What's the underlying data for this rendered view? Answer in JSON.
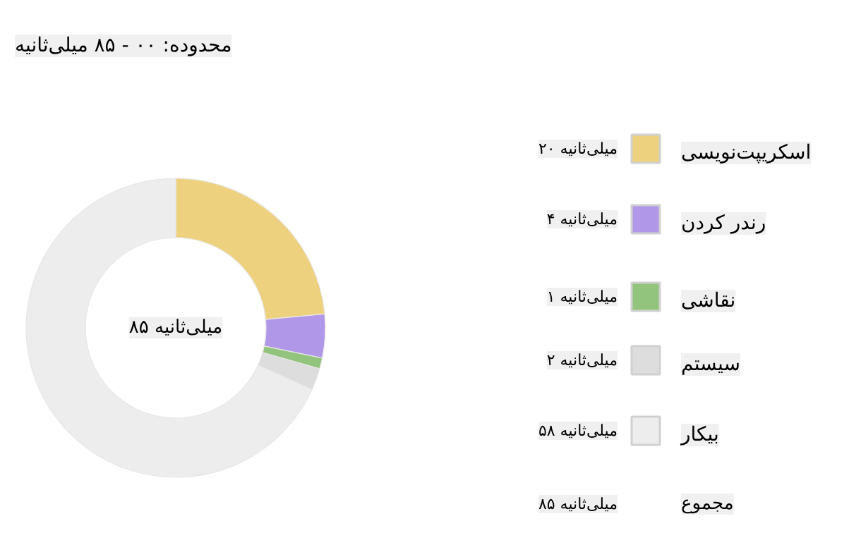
{
  "chart_data": {
    "type": "donut",
    "title": "محدوده: ۰۰ - ۸۵ میلی‌ثانیه",
    "categories": [
      "اسکریپت‌نویسی",
      "رندر کردن",
      "نقاشی",
      "سیستم",
      "بیکار"
    ],
    "values": [
      20,
      4,
      1,
      2,
      58
    ],
    "value_labels": [
      "۲۰ میلی‌ثانیه",
      "۴ میلی‌ثانیه",
      "۱ میلی‌ثانیه",
      "۲ میلی‌ثانیه",
      "۵۸ میلی‌ثانیه"
    ],
    "colors": [
      "#eed17f",
      "#b197e8",
      "#93c47d",
      "#dddddd",
      "#ededed"
    ],
    "totals": [
      "۸۵ میلی‌ثانیه"
    ],
    "annotations": [
      "مجموع",
      "۸۵ میلی‌ثانیه"
    ],
    "legend": "right"
  }
}
